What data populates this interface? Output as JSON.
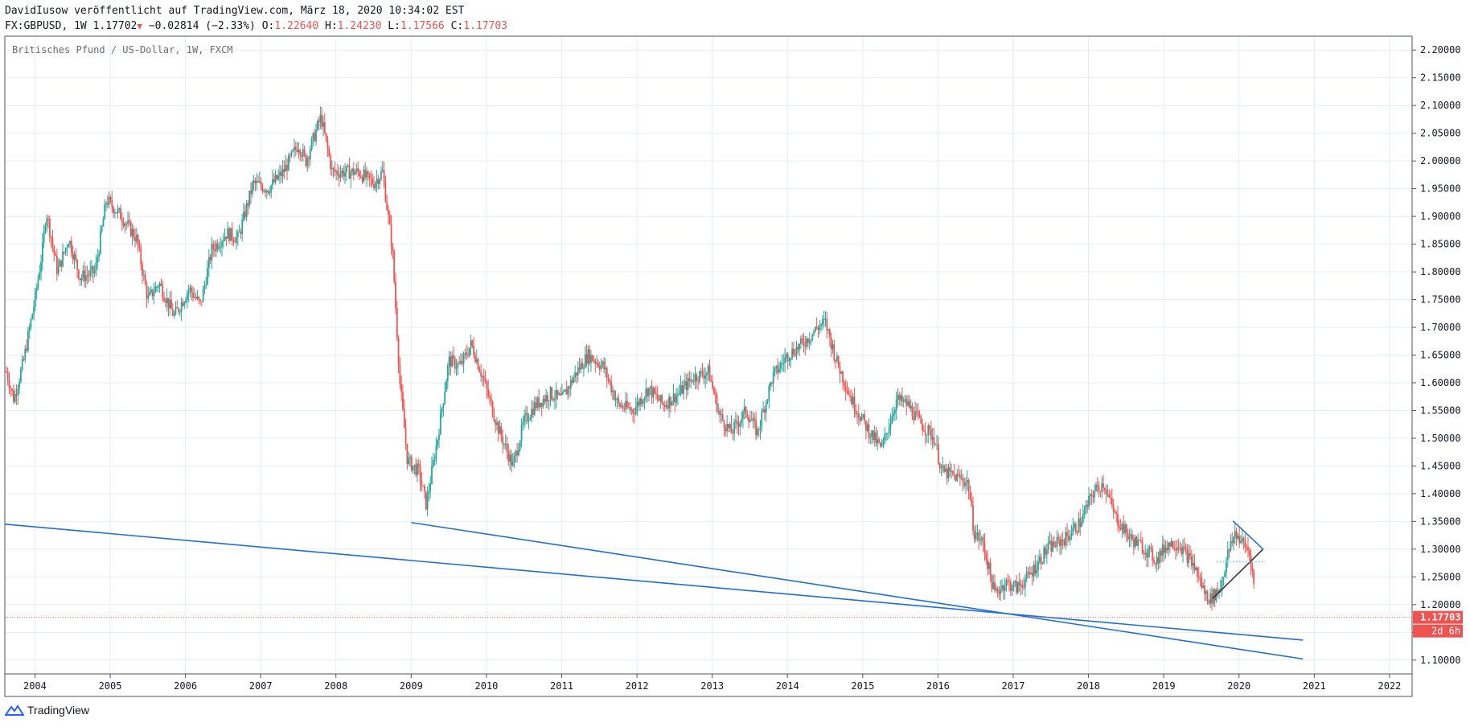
{
  "header": {
    "line1": "DavidIusow veröffentlicht auf TradingView.com, März 18, 2020 10:34:02 EST",
    "symbol": "FX:GBPUSD, 1W",
    "last": "1.17702",
    "change": "−0.02814 (−2.33%)",
    "o_label": "O:",
    "o_value": "1.22640",
    "h_label": "H:",
    "h_value": "1.24230",
    "l_label": "L:",
    "l_value": "1.17566",
    "c_label": "C:",
    "c_value": "1.17703"
  },
  "footer": {
    "brand": "TradingView"
  },
  "colors": {
    "up": "#26a69a",
    "down": "#ef5350",
    "trendline": "#1e6fd6",
    "grid": "#e6edf3",
    "price_tag": "#ef5350"
  },
  "chart_data": {
    "type": "candlestick",
    "title": "Britisches Pfund / US-Dollar, 1W, FXCM",
    "xlim": [
      2003.6,
      2022.3
    ],
    "ylim": [
      1.075,
      2.225
    ],
    "x_ticks": [
      "2004",
      "2005",
      "2006",
      "2007",
      "2008",
      "2009",
      "2010",
      "2011",
      "2012",
      "2013",
      "2014",
      "2015",
      "2016",
      "2017",
      "2018",
      "2019",
      "2020",
      "2021",
      "2022"
    ],
    "y_ticks": [
      "1.10000",
      "1.15000",
      "1.20000",
      "1.25000",
      "1.30000",
      "1.35000",
      "1.40000",
      "1.45000",
      "1.50000",
      "1.55000",
      "1.60000",
      "1.65000",
      "1.70000",
      "1.75000",
      "1.80000",
      "1.85000",
      "1.90000",
      "1.95000",
      "2.00000",
      "2.05000",
      "2.10000",
      "2.15000",
      "2.20000"
    ],
    "price_path": [
      [
        2003.62,
        1.62
      ],
      [
        2003.72,
        1.57
      ],
      [
        2003.85,
        1.64
      ],
      [
        2004.0,
        1.75
      ],
      [
        2004.1,
        1.84
      ],
      [
        2004.15,
        1.91
      ],
      [
        2004.3,
        1.8
      ],
      [
        2004.45,
        1.86
      ],
      [
        2004.6,
        1.79
      ],
      [
        2004.8,
        1.8
      ],
      [
        2004.95,
        1.93
      ],
      [
        2005.15,
        1.9
      ],
      [
        2005.35,
        1.86
      ],
      [
        2005.5,
        1.75
      ],
      [
        2005.65,
        1.78
      ],
      [
        2005.85,
        1.72
      ],
      [
        2006.05,
        1.77
      ],
      [
        2006.2,
        1.74
      ],
      [
        2006.35,
        1.84
      ],
      [
        2006.55,
        1.87
      ],
      [
        2006.7,
        1.86
      ],
      [
        2006.9,
        1.96
      ],
      [
        2007.1,
        1.95
      ],
      [
        2007.3,
        1.98
      ],
      [
        2007.5,
        2.03
      ],
      [
        2007.6,
        2.0
      ],
      [
        2007.8,
        2.08
      ],
      [
        2007.95,
        1.98
      ],
      [
        2008.15,
        1.98
      ],
      [
        2008.3,
        1.98
      ],
      [
        2008.5,
        1.96
      ],
      [
        2008.62,
        1.98
      ],
      [
        2008.75,
        1.84
      ],
      [
        2008.85,
        1.6
      ],
      [
        2008.95,
        1.46
      ],
      [
        2009.1,
        1.44
      ],
      [
        2009.2,
        1.38
      ],
      [
        2009.35,
        1.5
      ],
      [
        2009.5,
        1.64
      ],
      [
        2009.65,
        1.63
      ],
      [
        2009.8,
        1.67
      ],
      [
        2009.95,
        1.61
      ],
      [
        2010.15,
        1.52
      ],
      [
        2010.35,
        1.45
      ],
      [
        2010.5,
        1.53
      ],
      [
        2010.65,
        1.56
      ],
      [
        2010.85,
        1.58
      ],
      [
        2011.0,
        1.57
      ],
      [
        2011.2,
        1.62
      ],
      [
        2011.35,
        1.65
      ],
      [
        2011.55,
        1.63
      ],
      [
        2011.75,
        1.56
      ],
      [
        2011.95,
        1.55
      ],
      [
        2012.15,
        1.59
      ],
      [
        2012.35,
        1.56
      ],
      [
        2012.55,
        1.58
      ],
      [
        2012.75,
        1.61
      ],
      [
        2012.95,
        1.62
      ],
      [
        2013.1,
        1.54
      ],
      [
        2013.25,
        1.51
      ],
      [
        2013.45,
        1.55
      ],
      [
        2013.6,
        1.51
      ],
      [
        2013.8,
        1.61
      ],
      [
        2014.0,
        1.65
      ],
      [
        2014.2,
        1.67
      ],
      [
        2014.4,
        1.7
      ],
      [
        2014.5,
        1.71
      ],
      [
        2014.65,
        1.64
      ],
      [
        2014.85,
        1.57
      ],
      [
        2015.05,
        1.52
      ],
      [
        2015.25,
        1.48
      ],
      [
        2015.45,
        1.57
      ],
      [
        2015.6,
        1.56
      ],
      [
        2015.75,
        1.53
      ],
      [
        2015.95,
        1.5
      ],
      [
        2016.05,
        1.44
      ],
      [
        2016.25,
        1.43
      ],
      [
        2016.4,
        1.42
      ],
      [
        2016.48,
        1.33
      ],
      [
        2016.6,
        1.31
      ],
      [
        2016.75,
        1.22
      ],
      [
        2016.9,
        1.24
      ],
      [
        2017.05,
        1.23
      ],
      [
        2017.2,
        1.25
      ],
      [
        2017.45,
        1.3
      ],
      [
        2017.7,
        1.32
      ],
      [
        2017.9,
        1.35
      ],
      [
        2018.05,
        1.4
      ],
      [
        2018.2,
        1.42
      ],
      [
        2018.35,
        1.36
      ],
      [
        2018.55,
        1.32
      ],
      [
        2018.75,
        1.3
      ],
      [
        2018.9,
        1.28
      ],
      [
        2019.05,
        1.31
      ],
      [
        2019.2,
        1.31
      ],
      [
        2019.4,
        1.27
      ],
      [
        2019.55,
        1.22
      ],
      [
        2019.62,
        1.21
      ],
      [
        2019.75,
        1.23
      ],
      [
        2019.85,
        1.29
      ],
      [
        2019.95,
        1.33
      ],
      [
        2020.05,
        1.31
      ],
      [
        2020.12,
        1.3
      ],
      [
        2020.16,
        1.28
      ],
      [
        2020.2,
        1.23
      ],
      [
        2020.21,
        1.177
      ]
    ],
    "trendlines": [
      {
        "name": "long-support-2004",
        "points": [
          [
            2003.6,
            1.345
          ],
          [
            2020.85,
            1.136
          ]
        ]
      },
      {
        "name": "support-2009",
        "points": [
          [
            2009.0,
            1.348
          ],
          [
            2020.85,
            1.102
          ]
        ]
      },
      {
        "name": "wedge-upper",
        "points": [
          [
            2019.92,
            1.351
          ],
          [
            2020.32,
            1.3
          ]
        ]
      },
      {
        "name": "wedge-lower",
        "points": [
          [
            2019.65,
            1.211
          ],
          [
            2020.32,
            1.3
          ]
        ]
      }
    ],
    "horizontal_lines": [
      {
        "name": "resistance-dotted",
        "y": 1.2775,
        "x": [
          2019.7,
          2020.35
        ]
      },
      {
        "name": "last-price-line",
        "y": 1.17703
      }
    ],
    "last_price_label": "1.17703",
    "countdown_label": "2d 6h"
  }
}
